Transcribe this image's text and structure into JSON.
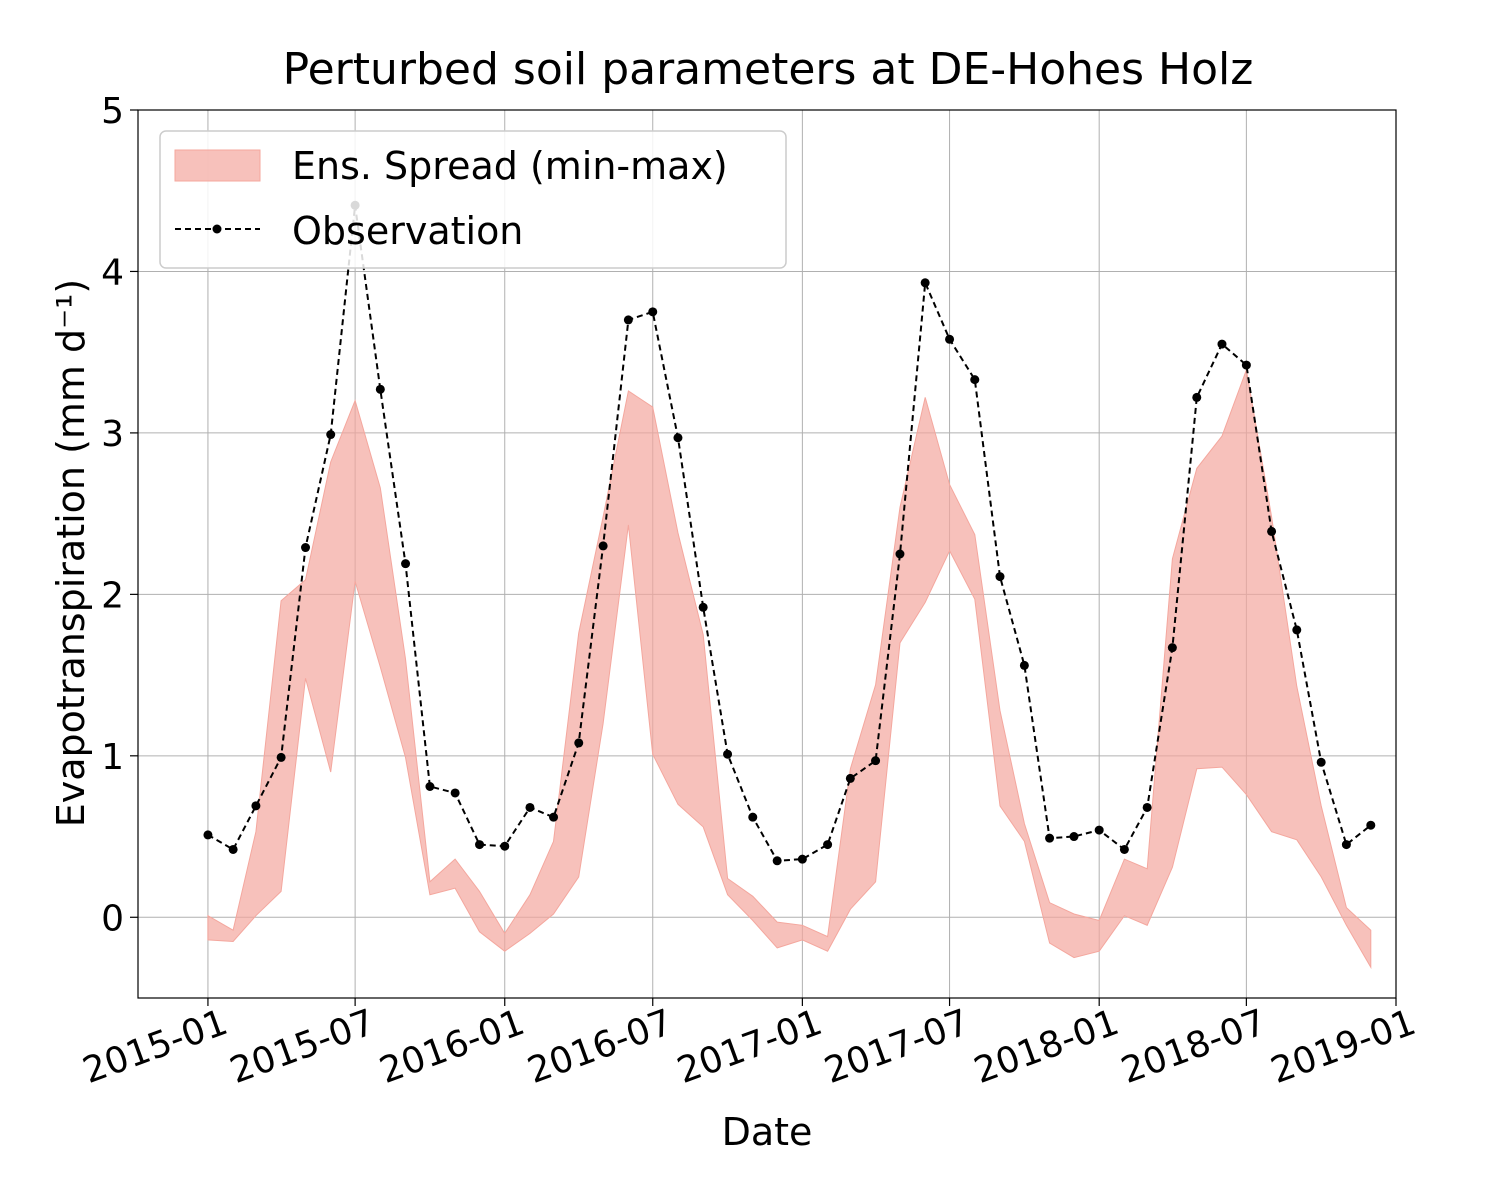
{
  "chart_data": {
    "type": "line",
    "title": "Perturbed soil parameters at DE-Hohes Holz",
    "xlabel": "Date",
    "ylabel": "Evapotranspiration  (mm d⁻¹)",
    "ylim": [
      -0.5,
      5
    ],
    "xlim": [
      "2014-10-07",
      "2019-01-01"
    ],
    "x_ticks": [
      "2015-01",
      "2015-07",
      "2016-01",
      "2016-07",
      "2017-01",
      "2017-07",
      "2018-01",
      "2018-07",
      "2019-01"
    ],
    "y_ticks": [
      "0",
      "1",
      "2",
      "3",
      "4",
      "5"
    ],
    "grid": true,
    "legend_position": "upper-left",
    "legend": [
      {
        "label": "Ens. Spread (min-max)"
      },
      {
        "label": "Observation"
      }
    ],
    "x": [
      "2015-01",
      "2015-02",
      "2015-03",
      "2015-04",
      "2015-05",
      "2015-06",
      "2015-07",
      "2015-08",
      "2015-09",
      "2015-10",
      "2015-11",
      "2015-12",
      "2016-01",
      "2016-02",
      "2016-03",
      "2016-04",
      "2016-05",
      "2016-06",
      "2016-07",
      "2016-08",
      "2016-09",
      "2016-10",
      "2016-11",
      "2016-12",
      "2017-01",
      "2017-02",
      "2017-03",
      "2017-04",
      "2017-05",
      "2017-06",
      "2017-07",
      "2017-08",
      "2017-09",
      "2017-10",
      "2017-11",
      "2017-12",
      "2018-01",
      "2018-02",
      "2018-03",
      "2018-04",
      "2018-05",
      "2018-06",
      "2018-07",
      "2018-08",
      "2018-09",
      "2018-10",
      "2018-11",
      "2018-12"
    ],
    "series": [
      {
        "name": "Ens. Spread (min-max)",
        "kind": "band",
        "color": "#f4a79e",
        "upper": [
          0.01,
          -0.08,
          0.53,
          1.96,
          2.09,
          2.82,
          3.2,
          2.66,
          1.6,
          0.22,
          0.36,
          0.16,
          -0.1,
          0.14,
          0.47,
          1.76,
          2.48,
          3.26,
          3.16,
          2.38,
          1.75,
          0.24,
          0.13,
          -0.03,
          -0.05,
          -0.12,
          0.92,
          1.44,
          2.54,
          3.22,
          2.68,
          2.37,
          1.28,
          0.58,
          0.09,
          0.02,
          -0.02,
          0.36,
          0.3,
          2.22,
          2.78,
          2.98,
          3.39,
          2.48,
          1.43,
          0.69,
          0.06,
          -0.08
        ],
        "lower": [
          -0.14,
          -0.15,
          0.01,
          0.16,
          1.48,
          0.9,
          2.08,
          1.55,
          0.99,
          0.14,
          0.18,
          -0.09,
          -0.21,
          -0.1,
          0.02,
          0.25,
          1.2,
          2.43,
          1.01,
          0.7,
          0.56,
          0.14,
          -0.02,
          -0.19,
          -0.14,
          -0.21,
          0.05,
          0.22,
          1.7,
          1.95,
          2.27,
          1.97,
          0.69,
          0.47,
          -0.16,
          -0.25,
          -0.21,
          0.01,
          -0.05,
          0.31,
          0.92,
          0.93,
          0.76,
          0.53,
          0.48,
          0.25,
          -0.05,
          -0.31
        ]
      },
      {
        "name": "Observation",
        "kind": "line",
        "color": "#000000",
        "values": [
          0.51,
          0.42,
          0.69,
          0.99,
          2.29,
          2.99,
          4.41,
          3.27,
          2.19,
          0.81,
          0.77,
          0.45,
          0.44,
          0.68,
          0.62,
          1.08,
          2.3,
          3.7,
          3.75,
          2.97,
          1.92,
          1.01,
          0.62,
          0.35,
          0.36,
          0.45,
          0.86,
          0.97,
          2.25,
          3.93,
          3.58,
          3.33,
          2.11,
          1.56,
          0.49,
          0.5,
          0.54,
          0.42,
          0.68,
          1.67,
          3.22,
          3.55,
          3.42,
          2.39,
          1.78,
          0.96,
          0.45,
          0.57
        ]
      }
    ]
  }
}
